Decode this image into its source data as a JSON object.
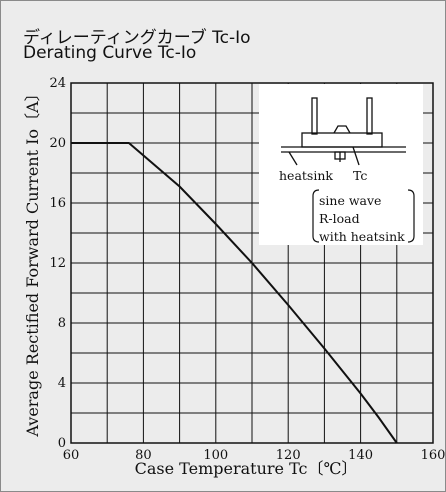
{
  "title_jp": "ディレーティングカーブ Tc-Io",
  "title_en": "Derating Curve Tc-Io",
  "chart_data": {
    "type": "line",
    "title": "Derating Curve Tc-Io",
    "xlabel": "Case Temperature Tc〔℃〕",
    "ylabel": "Average Rectified Forward Current Io〔A〕",
    "xlim": [
      60,
      160
    ],
    "ylim": [
      0,
      24
    ],
    "x_ticks": [
      60,
      80,
      100,
      120,
      140,
      160
    ],
    "y_ticks": [
      0,
      4,
      8,
      12,
      16,
      20,
      24
    ],
    "grid": true,
    "series": [
      {
        "x": [
          60,
          76,
          90,
          100,
          110,
          120,
          130,
          140,
          145,
          150
        ],
        "y": [
          20,
          20,
          17.1,
          14.6,
          12.0,
          9.2,
          6.3,
          3.3,
          1.7,
          0
        ]
      }
    ],
    "annotations": {
      "heatsink_label": "heatsink",
      "tc_label": "Tc",
      "conditions": [
        "sine wave",
        "R-load",
        "with heatsink"
      ]
    }
  }
}
